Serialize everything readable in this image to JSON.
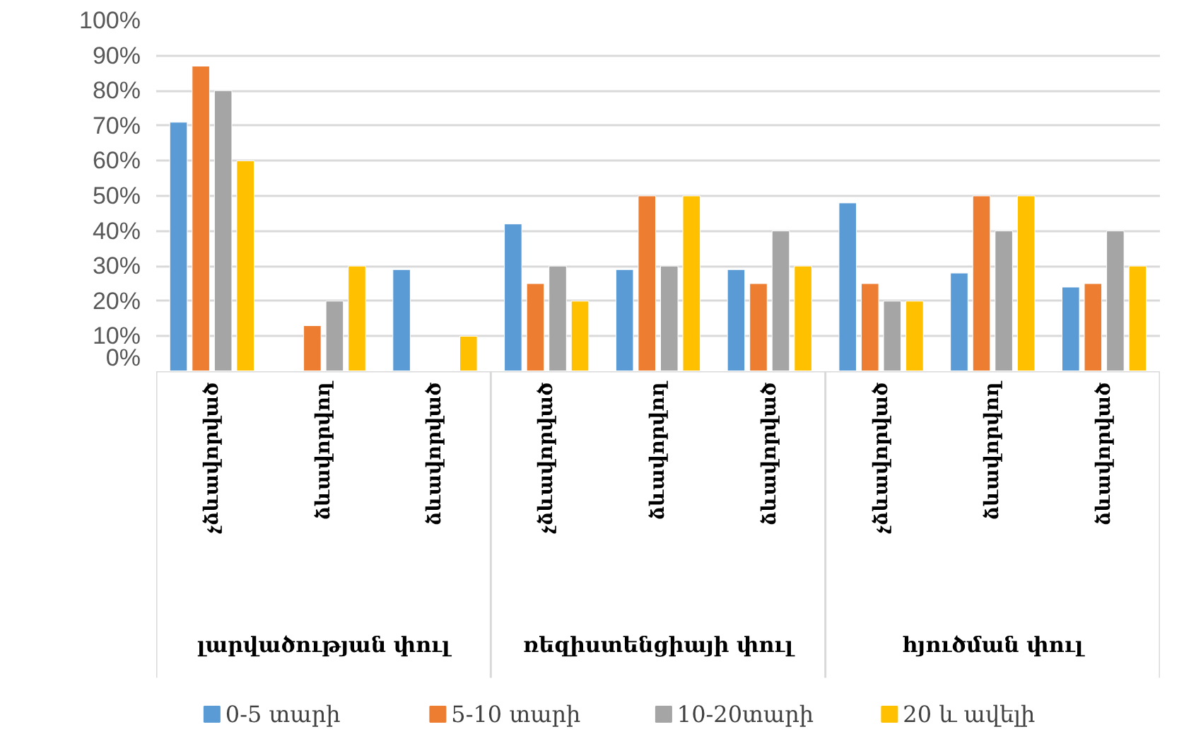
{
  "chart_data": {
    "type": "bar",
    "categories": [
      "չձևավորված",
      "ձևավորվող",
      "ձևավորված",
      "չձևավորված",
      "ձևավորվող",
      "ձևավորված",
      "չձևավորված",
      "ձևավորվող",
      "ձևավորված"
    ],
    "annotations": [
      "լարվածության փուլ",
      "ռեզիստենցիայի փուլ",
      "հյուծման փուլ"
    ],
    "series": [
      {
        "name": "0-5 տարի",
        "color": "#5b9bd5",
        "values": [
          71,
          null,
          29,
          42,
          29,
          29,
          48,
          28,
          24
        ]
      },
      {
        "name": "5-10 տարի",
        "color": "#ed7d31",
        "values": [
          87,
          13,
          null,
          25,
          50,
          25,
          25,
          50,
          25
        ]
      },
      {
        "name": "10-20տարի",
        "color": "#a5a5a5",
        "values": [
          80,
          20,
          null,
          30,
          30,
          40,
          20,
          40,
          40
        ]
      },
      {
        "name": "20 և ավելի",
        "color": "#ffc000",
        "values": [
          60,
          30,
          10,
          20,
          50,
          30,
          20,
          50,
          30
        ]
      }
    ],
    "ylim": [
      0,
      100
    ],
    "yticks": [
      {
        "value": 0,
        "label": "0%"
      },
      {
        "value": 10,
        "label": "10%"
      },
      {
        "value": 20,
        "label": "20%"
      },
      {
        "value": 30,
        "label": "30%"
      },
      {
        "value": 40,
        "label": "40%"
      },
      {
        "value": 50,
        "label": "50%"
      },
      {
        "value": 60,
        "label": "60%"
      },
      {
        "value": 70,
        "label": "70%"
      },
      {
        "value": 80,
        "label": "80%"
      },
      {
        "value": 90,
        "label": "90%"
      },
      {
        "value": 100,
        "label": "100%"
      }
    ],
    "grid": "y",
    "legend": "bottom"
  }
}
